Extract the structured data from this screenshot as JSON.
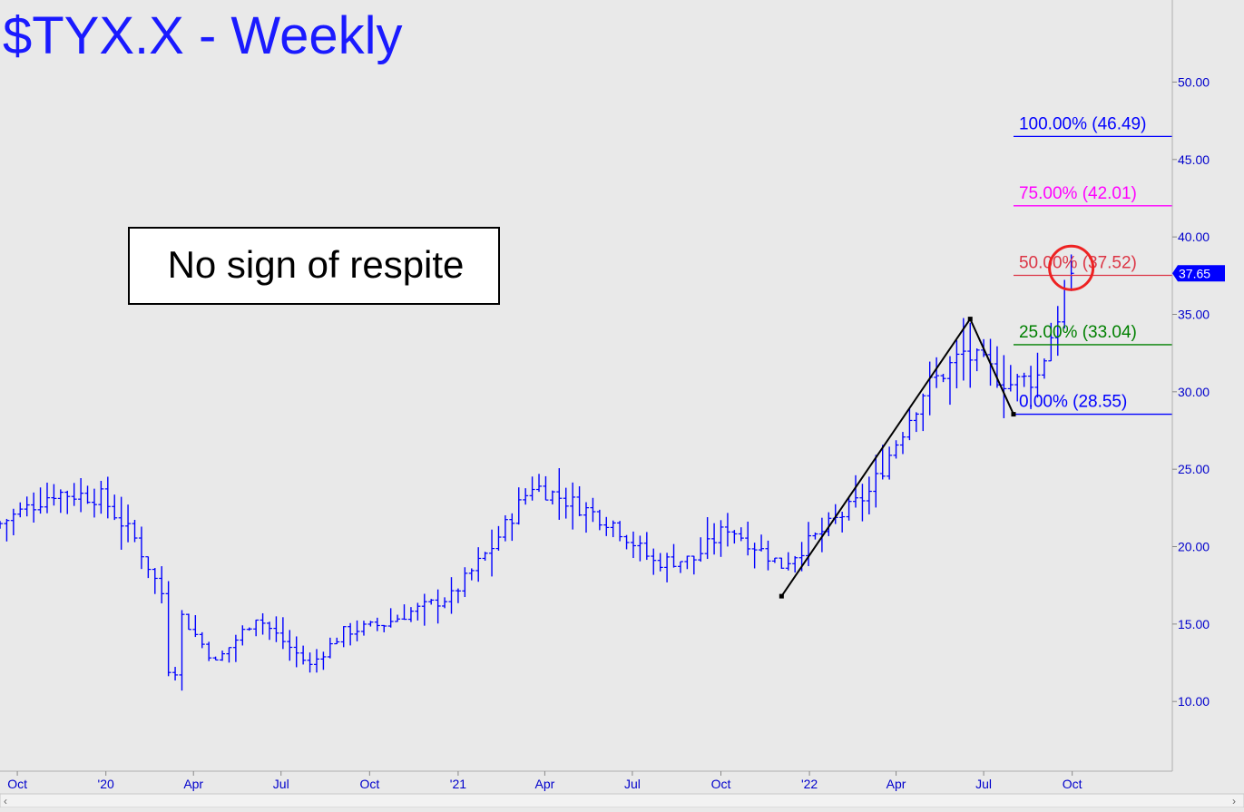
{
  "title": "$TYX.X - Weekly",
  "annotation": "No sign of respite",
  "current_price_label": "37.65",
  "colors": {
    "background": "#e9e9e9",
    "title": "#1a1aff",
    "bars": "#0000ff",
    "axis_text": "#0000cc",
    "level_100": "#0000ff",
    "level_75": "#ff00ff",
    "level_50": "#dc3545",
    "level_25": "#008000",
    "level_0": "#0000ff",
    "circle": "#ee2222",
    "price_tag": "#0000ff"
  },
  "chart_data": {
    "type": "ohlc",
    "title": "$TYX.X - Weekly",
    "y_axis": {
      "position": "right",
      "ylim": [
        5.5,
        55.3
      ],
      "ticks": [
        10,
        15,
        20,
        25,
        30,
        35,
        40,
        45,
        50
      ],
      "tick_labels": [
        "10.00",
        "15.00",
        "20.00",
        "25.00",
        "30.00",
        "35.00",
        "40.00",
        "45.00",
        "50.00"
      ]
    },
    "x_axis": {
      "start": "2019-09-13",
      "end": "2023-01-13",
      "ticks": [
        "2019-10-01",
        "2020-01-01",
        "2020-04-01",
        "2020-07-01",
        "2020-10-01",
        "2021-01-01",
        "2021-04-01",
        "2021-07-01",
        "2021-10-01",
        "2022-01-01",
        "2022-04-01",
        "2022-07-01",
        "2022-10-01"
      ],
      "tick_labels": [
        "Oct",
        "'20",
        "Apr",
        "Jul",
        "Oct",
        "'21",
        "Apr",
        "Jul",
        "Oct",
        "'22",
        "Apr",
        "Jul",
        "Oct"
      ]
    },
    "grid": false,
    "price_path": [
      [
        "2019-09-13",
        21.5
      ],
      [
        "2019-11-08",
        23.5
      ],
      [
        "2019-12-27",
        23.2
      ],
      [
        "2020-01-31",
        20.5
      ],
      [
        "2020-02-28",
        17.0
      ],
      [
        "2020-03-09",
        10.0
      ],
      [
        "2020-03-20",
        15.5
      ],
      [
        "2020-04-24",
        12.5
      ],
      [
        "2020-06-05",
        15.5
      ],
      [
        "2020-07-31",
        12.3
      ],
      [
        "2020-09-04",
        14.5
      ],
      [
        "2020-10-16",
        15.0
      ],
      [
        "2020-11-13",
        15.8
      ],
      [
        "2020-12-25",
        16.8
      ],
      [
        "2021-02-05",
        20.0
      ],
      [
        "2021-03-19",
        24.0
      ],
      [
        "2021-04-30",
        22.8
      ],
      [
        "2021-06-11",
        21.5
      ],
      [
        "2021-07-23",
        19.0
      ],
      [
        "2021-09-03",
        19.2
      ],
      [
        "2021-10-08",
        21.3
      ],
      [
        "2021-12-03",
        18.8
      ],
      [
        "2022-03-04",
        23.5
      ],
      [
        "2022-04-29",
        30.0
      ],
      [
        "2022-06-10",
        32.5
      ],
      [
        "2022-07-29",
        30.5
      ],
      [
        "2022-08-26",
        31.0
      ],
      [
        "2022-09-30",
        37.65
      ]
    ],
    "pivots": [
      {
        "date": "2021-12-03",
        "value": 16.8
      },
      {
        "date": "2022-06-17",
        "value": 34.7
      },
      {
        "date": "2022-08-01",
        "value": 28.55
      }
    ],
    "levels": [
      {
        "label": "100.00% (46.49)",
        "value": 46.49,
        "color": "#0000ff"
      },
      {
        "label": "75.00% (42.01)",
        "value": 42.01,
        "color": "#ff00ff"
      },
      {
        "label": "50.00% (37.52)",
        "value": 37.52,
        "color": "#dc3545"
      },
      {
        "label": "25.00% (33.04)",
        "value": 33.04,
        "color": "#008000"
      },
      {
        "label": "0.00% (28.55)",
        "value": 28.55,
        "color": "#0000ff"
      }
    ],
    "last_price": 37.65,
    "highlight": {
      "date": "2022-09-30",
      "value": 38.0
    }
  }
}
